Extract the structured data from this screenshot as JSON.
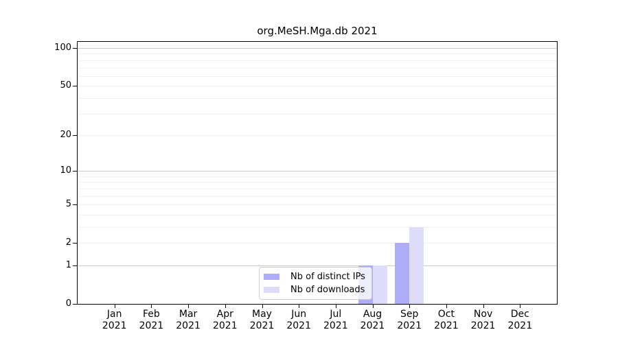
{
  "chart_data": {
    "type": "bar",
    "title": "org.MeSH.Mga.db 2021",
    "xlabel": "",
    "ylabel": "",
    "categories": [
      "Jan",
      "Feb",
      "Mar",
      "Apr",
      "May",
      "Jun",
      "Jul",
      "Aug",
      "Sep",
      "Oct",
      "Nov",
      "Dec"
    ],
    "x_sublabel": "2021",
    "series": [
      {
        "name": "Nb of distinct IPs",
        "color": "#acacf8",
        "values": [
          0,
          0,
          0,
          0,
          0,
          0,
          0,
          1,
          2,
          0,
          0,
          0
        ]
      },
      {
        "name": "Nb of downloads",
        "color": "#ddddfa",
        "values": [
          0,
          0,
          0,
          0,
          0,
          0,
          0,
          1,
          3,
          0,
          0,
          0
        ]
      }
    ],
    "y_axis": {
      "scale": "log1p",
      "tick_values": [
        0,
        1,
        2,
        5,
        10,
        20,
        50,
        100
      ],
      "tick_labels": [
        "0",
        "1",
        "2",
        "5",
        "10",
        "20",
        "50",
        "100"
      ],
      "major_gridlines": [
        1,
        10,
        100
      ],
      "minor_gridlines": [
        2,
        3,
        4,
        5,
        6,
        7,
        8,
        9,
        20,
        30,
        40,
        50,
        60,
        70,
        80,
        90
      ],
      "ylim": [
        0,
        112
      ]
    },
    "legend": {
      "position": "lower-center-inside",
      "entries": [
        "Nb of distinct IPs",
        "Nb of downloads"
      ]
    },
    "grid": "horizontal",
    "colors": {
      "axis": "#000000",
      "grid_major": "#c8c8c8",
      "grid_minor": "#efefef",
      "background": "#ffffff"
    }
  }
}
